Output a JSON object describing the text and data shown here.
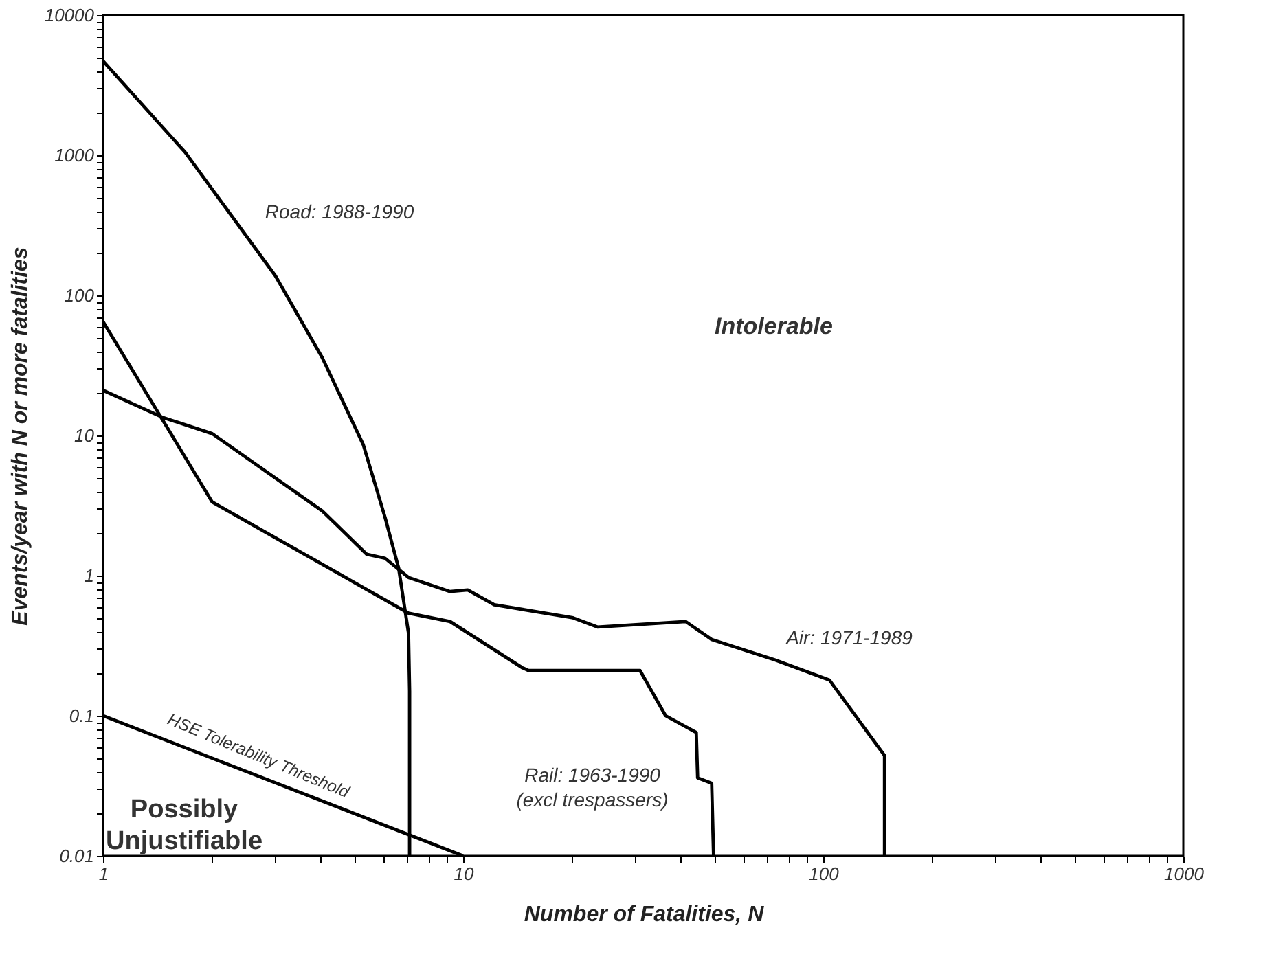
{
  "chart_data": {
    "type": "line",
    "xlabel": "Number of Fatalities, N",
    "ylabel": "Events/year with N or more fatalities",
    "log": "xy",
    "grid": false,
    "line_style": "solid",
    "marker": "none",
    "xlim": [
      1,
      1000
    ],
    "ylim": [
      0.01,
      10000
    ],
    "xticks": [
      1,
      {
        "value": 2,
        "label": null
      },
      {
        "value": 3,
        "label": null
      },
      {
        "value": 4,
        "label": null
      },
      {
        "value": 5,
        "label": null
      },
      {
        "value": 6,
        "label": null
      },
      {
        "value": 7,
        "label": null
      },
      {
        "value": 8,
        "label": null
      },
      {
        "value": 9,
        "label": null
      },
      10,
      {
        "value": 20,
        "label": null
      },
      {
        "value": 30,
        "label": null
      },
      {
        "value": 40,
        "label": null
      },
      {
        "value": 50,
        "label": null
      },
      {
        "value": 60,
        "label": null
      },
      {
        "value": 70,
        "label": null
      },
      {
        "value": 80,
        "label": null
      },
      {
        "value": 90,
        "label": null
      },
      100,
      {
        "value": 200,
        "label": null
      },
      {
        "value": 300,
        "label": null
      },
      {
        "value": 400,
        "label": null
      },
      {
        "value": 500,
        "label": null
      },
      {
        "value": 600,
        "label": null
      },
      {
        "value": 700,
        "label": null
      },
      {
        "value": 800,
        "label": null
      },
      {
        "value": 900,
        "label": null
      },
      1000
    ],
    "yticks": [
      0.01,
      {
        "value": 0.02,
        "label": null
      },
      {
        "value": 0.03,
        "label": null
      },
      {
        "value": 0.04,
        "label": null
      },
      {
        "value": 0.05,
        "label": null
      },
      {
        "value": 0.06,
        "label": null
      },
      {
        "value": 0.07,
        "label": null
      },
      {
        "value": 0.08,
        "label": null
      },
      {
        "value": 0.09,
        "label": null
      },
      0.1,
      {
        "value": 0.2,
        "label": null
      },
      {
        "value": 0.3,
        "label": null
      },
      {
        "value": 0.4,
        "label": null
      },
      {
        "value": 0.5,
        "label": null
      },
      {
        "value": 0.6,
        "label": null
      },
      {
        "value": 0.7,
        "label": null
      },
      {
        "value": 0.8,
        "label": null
      },
      {
        "value": 0.9,
        "label": null
      },
      1,
      {
        "value": 2,
        "label": null
      },
      {
        "value": 3,
        "label": null
      },
      {
        "value": 4,
        "label": null
      },
      {
        "value": 5,
        "label": null
      },
      {
        "value": 6,
        "label": null
      },
      {
        "value": 7,
        "label": null
      },
      {
        "value": 8,
        "label": null
      },
      {
        "value": 9,
        "label": null
      },
      10,
      {
        "value": 20,
        "label": null
      },
      {
        "value": 30,
        "label": null
      },
      {
        "value": 40,
        "label": null
      },
      {
        "value": 50,
        "label": null
      },
      {
        "value": 60,
        "label": null
      },
      {
        "value": 70,
        "label": null
      },
      {
        "value": 80,
        "label": null
      },
      {
        "value": 90,
        "label": null
      },
      100,
      {
        "value": 200,
        "label": null
      },
      {
        "value": 300,
        "label": null
      },
      {
        "value": 400,
        "label": null
      },
      {
        "value": 500,
        "label": null
      },
      {
        "value": 600,
        "label": null
      },
      {
        "value": 700,
        "label": null
      },
      {
        "value": 800,
        "label": null
      },
      {
        "value": 900,
        "label": null
      },
      1000,
      {
        "value": 2000,
        "label": null
      },
      {
        "value": 3000,
        "label": null
      },
      {
        "value": 4000,
        "label": null
      },
      {
        "value": 5000,
        "label": null
      },
      {
        "value": 6000,
        "label": null
      },
      {
        "value": 7000,
        "label": null
      },
      {
        "value": 8000,
        "label": null
      },
      {
        "value": 9000,
        "label": null
      },
      10000
    ],
    "series": [
      {
        "name": "Road: 1988-1990",
        "color": "#000000",
        "x": [
          1,
          1.69,
          3.01,
          4.06,
          5.28,
          6.07,
          6.62,
          7.05,
          7.1,
          7.1
        ],
        "values": [
          4700,
          1050,
          138,
          36,
          8.6,
          2.6,
          1.13,
          0.39,
          0.15,
          0.01
        ]
      },
      {
        "name": "Rail: 1963-1990\n(excl trespassers)",
        "color": "#000000",
        "x": [
          1,
          2.01,
          7.05,
          9.2,
          14.6,
          15.2,
          31,
          36.5,
          44.4,
          44.8,
          49,
          49.6
        ],
        "values": [
          65,
          3.35,
          0.54,
          0.47,
          0.22,
          0.21,
          0.21,
          0.1,
          0.076,
          0.036,
          0.033,
          0.01
        ]
      },
      {
        "name": "Air: 1971-1989",
        "color": "#000000",
        "x": [
          1,
          1.46,
          2.01,
          4.06,
          5.4,
          6.07,
          7.05,
          9.2,
          10.3,
          12.2,
          20.2,
          23.6,
          41.5,
          49,
          73.5,
          104,
          148,
          148
        ],
        "values": [
          21,
          13.5,
          10.3,
          2.9,
          1.42,
          1.33,
          0.97,
          0.77,
          0.79,
          0.62,
          0.5,
          0.43,
          0.47,
          0.35,
          0.25,
          0.18,
          0.052,
          0.01
        ]
      },
      {
        "name": "HSE Tolerability Threshold",
        "color": "#000000",
        "x": [
          1,
          10
        ],
        "values": [
          0.1,
          0.01
        ]
      }
    ],
    "annotations": [
      "Intolerable",
      "Possibly\nUnjustifiable"
    ]
  }
}
